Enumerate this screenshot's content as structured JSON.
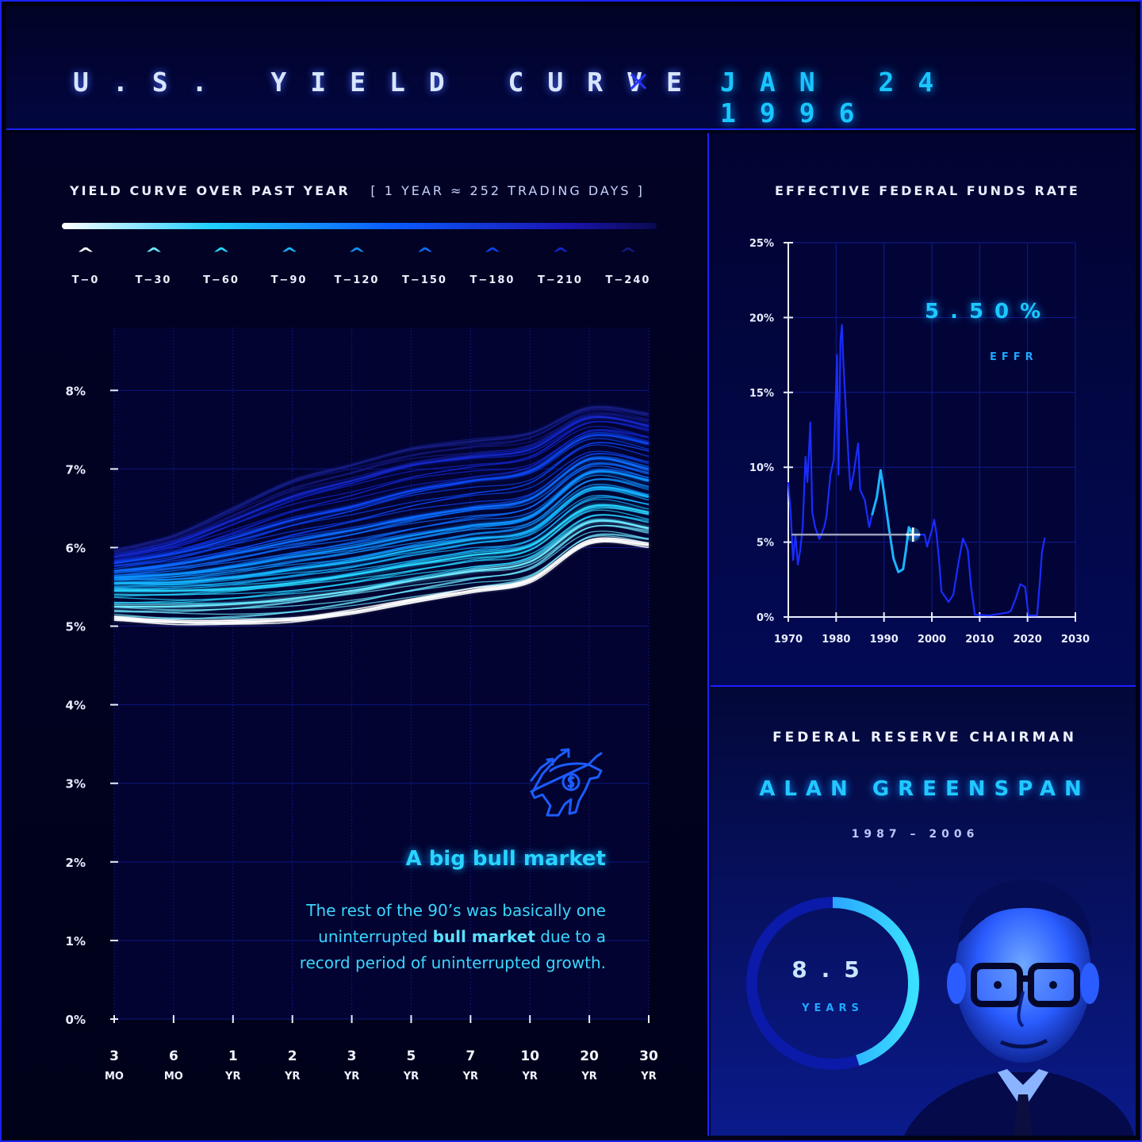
{
  "header": {
    "title": "U.S. YIELD CURVE",
    "separator": "×",
    "date": "JAN 24 1996"
  },
  "yield_panel": {
    "title": "YIELD CURVE OVER PAST YEAR",
    "subtitle": "[ 1 YEAR ≈ 252 TRADING DAYS ]",
    "legend": [
      {
        "label": "T−0",
        "color": "#ffffff"
      },
      {
        "label": "T−30",
        "color": "#6ee8ff"
      },
      {
        "label": "T−60",
        "color": "#27d4ff"
      },
      {
        "label": "T−90",
        "color": "#16b4ff"
      },
      {
        "label": "T−120",
        "color": "#1090ff"
      },
      {
        "label": "T−150",
        "color": "#0c6cff"
      },
      {
        "label": "T−180",
        "color": "#0c44f0"
      },
      {
        "label": "T−210",
        "color": "#1226c8"
      },
      {
        "label": "T−240",
        "color": "#141a80"
      }
    ]
  },
  "annotation": {
    "title": "A big bull market",
    "body_1": "The rest of the 90’s was basically one",
    "body_2a": "uninterrupted ",
    "body_2b": "bull market",
    "body_2c": " due to a",
    "body_3": "record period of uninterrupted growth.",
    "icon": "bull-market-icon"
  },
  "effr_panel": {
    "title": "EFFECTIVE FEDERAL FUNDS RATE",
    "value": "5.50%",
    "value_label": "EFFR"
  },
  "chairman_panel": {
    "title": "FEDERAL RESERVE CHAIRMAN",
    "name": "ALAN GREENSPAN",
    "years": "1987 – 2006",
    "tenure": "8.5",
    "tenure_unit": "YEARS",
    "tenure_fraction": 0.45
  },
  "chart_data": [
    {
      "type": "line",
      "title": "YIELD CURVE OVER PAST YEAR",
      "x_categories": [
        {
          "num": "3",
          "unit": "MO"
        },
        {
          "num": "6",
          "unit": "MO"
        },
        {
          "num": "1",
          "unit": "YR"
        },
        {
          "num": "2",
          "unit": "YR"
        },
        {
          "num": "3",
          "unit": "YR"
        },
        {
          "num": "5",
          "unit": "YR"
        },
        {
          "num": "7",
          "unit": "YR"
        },
        {
          "num": "10",
          "unit": "YR"
        },
        {
          "num": "20",
          "unit": "YR"
        },
        {
          "num": "30",
          "unit": "YR"
        }
      ],
      "y_ticks": [
        "0%",
        "1%",
        "2%",
        "3%",
        "4%",
        "5%",
        "6%",
        "7%",
        "8%"
      ],
      "ylim": [
        0,
        8.8
      ],
      "series": [
        {
          "label": "T−0",
          "values": [
            5.1,
            5.05,
            5.05,
            5.08,
            5.18,
            5.32,
            5.45,
            5.58,
            6.07,
            6.03
          ]
        },
        {
          "label": "T−30",
          "values": [
            5.25,
            5.25,
            5.28,
            5.35,
            5.45,
            5.58,
            5.7,
            5.82,
            6.32,
            6.25
          ]
        },
        {
          "label": "T−60",
          "values": [
            5.45,
            5.45,
            5.48,
            5.55,
            5.65,
            5.78,
            5.9,
            6.02,
            6.52,
            6.45
          ]
        },
        {
          "label": "T−90",
          "values": [
            5.55,
            5.56,
            5.62,
            5.72,
            5.82,
            5.97,
            6.1,
            6.22,
            6.75,
            6.65
          ]
        },
        {
          "label": "T−120",
          "values": [
            5.62,
            5.66,
            5.75,
            5.88,
            6.0,
            6.15,
            6.28,
            6.4,
            6.95,
            6.85
          ]
        },
        {
          "label": "T−150",
          "values": [
            5.7,
            5.78,
            5.92,
            6.08,
            6.22,
            6.38,
            6.5,
            6.62,
            7.12,
            7.0
          ]
        },
        {
          "label": "T−180",
          "values": [
            5.8,
            5.92,
            6.12,
            6.35,
            6.52,
            6.72,
            6.85,
            6.97,
            7.42,
            7.32
          ]
        },
        {
          "label": "T−210",
          "values": [
            5.88,
            6.05,
            6.35,
            6.65,
            6.85,
            7.05,
            7.15,
            7.25,
            7.65,
            7.55
          ]
        },
        {
          "label": "T−240",
          "values": [
            5.95,
            6.15,
            6.5,
            6.85,
            7.05,
            7.25,
            7.35,
            7.45,
            7.78,
            7.7
          ]
        }
      ]
    },
    {
      "type": "line",
      "title": "EFFECTIVE FEDERAL FUNDS RATE",
      "x_ticks": [
        "1970",
        "1980",
        "1990",
        "2000",
        "2010",
        "2020",
        "2030"
      ],
      "y_ticks": [
        "0%",
        "5%",
        "10%",
        "15%",
        "20%",
        "25%"
      ],
      "xlim": [
        1970,
        2030
      ],
      "ylim": [
        0,
        25
      ],
      "current": {
        "x": 1996.07,
        "y": 5.5
      },
      "series": [
        {
          "points": [
            [
              1970.0,
              9.0
            ],
            [
              1970.5,
              7.0
            ],
            [
              1971.0,
              3.8
            ],
            [
              1971.5,
              5.5
            ],
            [
              1972.0,
              3.5
            ],
            [
              1972.5,
              4.5
            ],
            [
              1973.0,
              6.0
            ],
            [
              1973.6,
              10.7
            ],
            [
              1974.0,
              9.0
            ],
            [
              1974.6,
              13.0
            ],
            [
              1975.0,
              7.0
            ],
            [
              1975.6,
              6.0
            ],
            [
              1976.5,
              5.2
            ],
            [
              1977.5,
              6.0
            ],
            [
              1978.0,
              6.8
            ],
            [
              1978.8,
              9.5
            ],
            [
              1979.5,
              10.5
            ],
            [
              1980.2,
              17.5
            ],
            [
              1980.5,
              9.5
            ],
            [
              1980.9,
              18.5
            ],
            [
              1981.2,
              19.5
            ],
            [
              1981.5,
              17.0
            ],
            [
              1982.0,
              14.0
            ],
            [
              1982.6,
              10.5
            ],
            [
              1983.0,
              8.5
            ],
            [
              1983.6,
              9.5
            ],
            [
              1984.6,
              11.6
            ],
            [
              1985.0,
              8.5
            ],
            [
              1986.0,
              7.8
            ],
            [
              1986.9,
              6.0
            ],
            [
              1987.5,
              6.8
            ],
            [
              1988.5,
              8.0
            ],
            [
              1989.3,
              9.8
            ],
            [
              1990.0,
              8.3
            ],
            [
              1991.0,
              6.0
            ],
            [
              1992.0,
              3.9
            ],
            [
              1993.0,
              3.0
            ],
            [
              1994.0,
              3.2
            ],
            [
              1994.6,
              4.5
            ],
            [
              1995.2,
              6.0
            ],
            [
              1996.07,
              5.5
            ],
            [
              1996.5,
              5.3
            ],
            [
              1997.5,
              5.5
            ],
            [
              1998.5,
              5.5
            ],
            [
              1999.0,
              4.7
            ],
            [
              2000.0,
              5.8
            ],
            [
              2000.5,
              6.5
            ],
            [
              2001.0,
              5.5
            ],
            [
              2001.5,
              3.8
            ],
            [
              2002.0,
              1.7
            ],
            [
              2003.5,
              1.0
            ],
            [
              2004.5,
              1.5
            ],
            [
              2005.5,
              3.5
            ],
            [
              2006.5,
              5.25
            ],
            [
              2007.5,
              4.5
            ],
            [
              2008.2,
              2.0
            ],
            [
              2009.0,
              0.15
            ],
            [
              2012.0,
              0.1
            ],
            [
              2015.9,
              0.3
            ],
            [
              2016.5,
              0.4
            ],
            [
              2017.5,
              1.2
            ],
            [
              2018.5,
              2.2
            ],
            [
              2019.5,
              2.0
            ],
            [
              2020.2,
              0.1
            ],
            [
              2022.0,
              0.1
            ],
            [
              2022.6,
              2.5
            ],
            [
              2023.0,
              4.3
            ],
            [
              2023.6,
              5.3
            ]
          ]
        }
      ]
    }
  ]
}
